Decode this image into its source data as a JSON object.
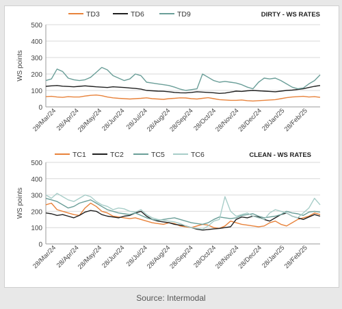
{
  "source": "Source: Intermodal",
  "chart_data": [
    {
      "type": "line",
      "title": "DIRTY - WS RATES",
      "ylabel": "WS points",
      "ylim": [
        0,
        500
      ],
      "yticks": [
        0,
        100,
        200,
        300,
        400,
        500
      ],
      "xlabels": [
        "28/Mar/24",
        "28/Apr/24",
        "28/May/24",
        "28/Jun/24",
        "28/Jul/24",
        "28/Aug/24",
        "28/Sep/24",
        "28/Oct/24",
        "28/Nov/24",
        "28/Dec/24",
        "28/Jan/25",
        "28/Feb/25"
      ],
      "grid": true,
      "legend_position": "top",
      "series": [
        {
          "name": "TD3",
          "color": "#e8823a",
          "values": [
            62,
            64,
            60,
            58,
            62,
            60,
            60,
            66,
            70,
            72,
            68,
            60,
            55,
            52,
            50,
            48,
            50,
            52,
            55,
            50,
            48,
            46,
            50,
            52,
            55,
            54,
            50,
            48,
            52,
            56,
            50,
            44,
            42,
            40,
            40,
            42,
            38,
            36,
            38,
            40,
            42,
            44,
            50,
            56,
            60,
            62,
            64,
            60,
            62,
            58
          ]
        },
        {
          "name": "TD6",
          "color": "#1f1f1f",
          "values": [
            125,
            128,
            130,
            126,
            124,
            122,
            125,
            128,
            125,
            122,
            120,
            118,
            122,
            120,
            118,
            115,
            112,
            108,
            100,
            98,
            96,
            95,
            92,
            88,
            86,
            85,
            88,
            92,
            90,
            88,
            86,
            82,
            84,
            90,
            96,
            94,
            98,
            100,
            98,
            96,
            94,
            92,
            96,
            100,
            102,
            106,
            110,
            118,
            125,
            130
          ]
        },
        {
          "name": "TD9",
          "color": "#6a9e98",
          "values": [
            160,
            170,
            230,
            215,
            175,
            165,
            160,
            165,
            180,
            210,
            240,
            225,
            190,
            175,
            160,
            170,
            200,
            190,
            150,
            145,
            140,
            135,
            130,
            120,
            108,
            100,
            105,
            110,
            200,
            180,
            160,
            150,
            155,
            150,
            145,
            135,
            120,
            110,
            150,
            175,
            170,
            175,
            160,
            140,
            120,
            110,
            115,
            140,
            160,
            195
          ]
        }
      ]
    },
    {
      "type": "line",
      "title": "CLEAN - WS RATES",
      "ylabel": "WS points",
      "ylim": [
        0,
        500
      ],
      "yticks": [
        0,
        100,
        200,
        300,
        400,
        500
      ],
      "xlabels": [
        "28/Mar/24",
        "28/Apr/24",
        "28/May/24",
        "28/Jun/24",
        "28/Jul/24",
        "28/Aug/24",
        "28/Sep/24",
        "28/Oct/24",
        "28/Nov/24",
        "28/Dec/24",
        "28/Jan/25",
        "28/Feb/25"
      ],
      "grid": true,
      "legend_position": "top",
      "series": [
        {
          "name": "TC1",
          "color": "#e8823a",
          "values": [
            240,
            250,
            210,
            200,
            190,
            180,
            175,
            220,
            250,
            230,
            200,
            190,
            170,
            165,
            160,
            155,
            160,
            150,
            140,
            130,
            125,
            120,
            130,
            125,
            110,
            105,
            100,
            110,
            120,
            115,
            100,
            95,
            110,
            140,
            130,
            120,
            115,
            110,
            105,
            110,
            130,
            140,
            120,
            110,
            130,
            150,
            160,
            170,
            190,
            180
          ]
        },
        {
          "name": "TC2",
          "color": "#1f1f1f",
          "values": [
            190,
            185,
            175,
            180,
            170,
            160,
            175,
            195,
            205,
            200,
            180,
            170,
            165,
            160,
            170,
            175,
            190,
            200,
            170,
            150,
            140,
            135,
            130,
            120,
            115,
            110,
            100,
            90,
            85,
            88,
            92,
            95,
            100,
            105,
            150,
            165,
            160,
            170,
            165,
            150,
            140,
            160,
            180,
            190,
            170,
            160,
            150,
            165,
            180,
            170
          ]
        },
        {
          "name": "TC5",
          "color": "#6a9e98",
          "values": [
            280,
            270,
            260,
            240,
            220,
            230,
            250,
            260,
            270,
            250,
            230,
            210,
            200,
            190,
            185,
            180,
            190,
            175,
            160,
            150,
            145,
            150,
            155,
            160,
            150,
            140,
            130,
            125,
            120,
            130,
            150,
            165,
            160,
            155,
            160,
            175,
            180,
            185,
            170,
            160,
            165,
            170,
            180,
            200,
            190,
            185,
            175,
            195,
            200,
            195
          ]
        },
        {
          "name": "TC6",
          "color": "#a7cdc8",
          "values": [
            300,
            280,
            310,
            290,
            270,
            260,
            280,
            300,
            290,
            260,
            240,
            230,
            210,
            220,
            215,
            200,
            195,
            210,
            180,
            160,
            150,
            145,
            140,
            135,
            125,
            110,
            100,
            95,
            90,
            110,
            140,
            150,
            290,
            200,
            170,
            180,
            190,
            170,
            160,
            150,
            190,
            210,
            200,
            190,
            170,
            160,
            190,
            220,
            280,
            240
          ]
        }
      ]
    }
  ]
}
